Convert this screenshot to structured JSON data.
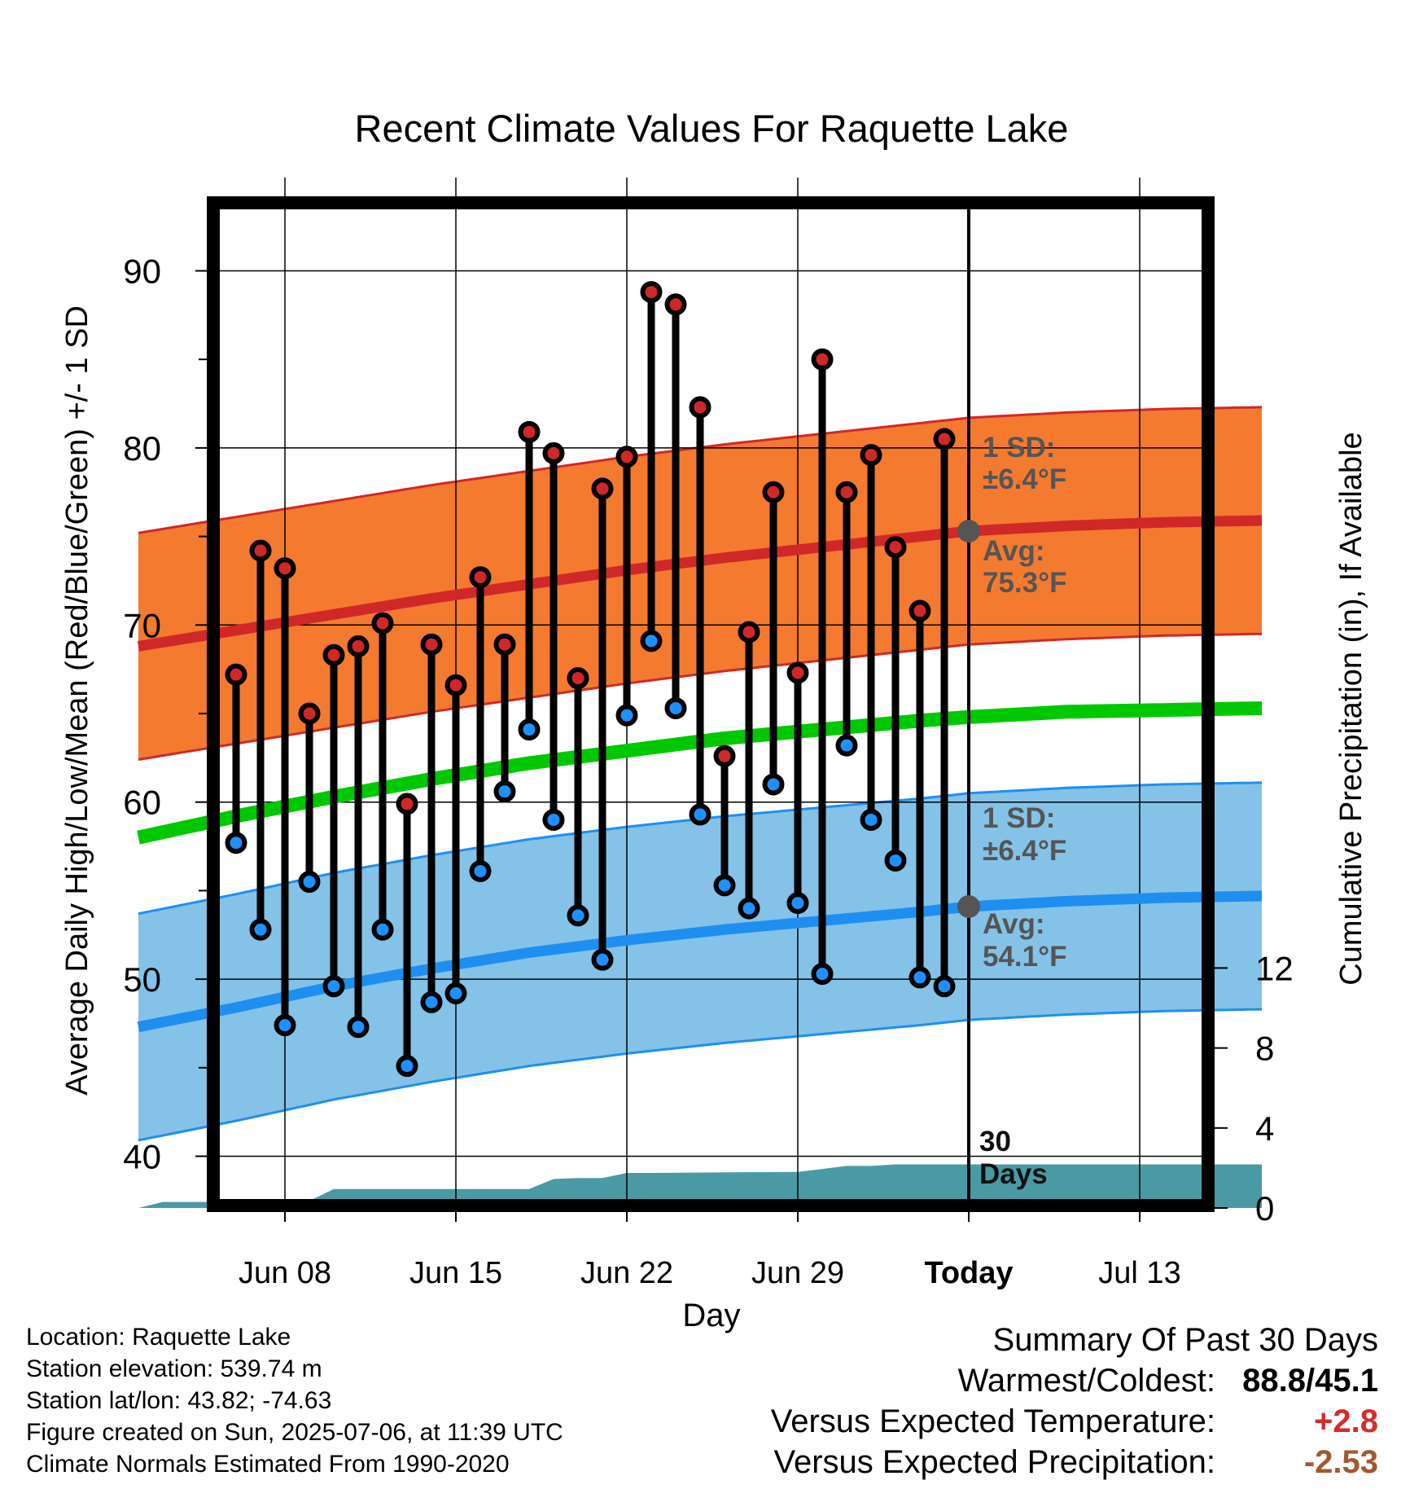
{
  "chart_data": {
    "type": "line",
    "title": "Recent Climate Values For Raquette Lake",
    "xlabel": "Day",
    "ylabel_left": "Average Daily High/Low/Mean (Red/Blue/Green) +/- 1 SD",
    "ylabel_right": "Cumulative Precipitation (in), If Available",
    "x_range_days": [
      -34,
      12
    ],
    "x_unit": "days relative to Today",
    "ylim_left": [
      37.5,
      94
    ],
    "ylim_right": [
      0,
      21.2
    ],
    "y_ticks_left": [
      40,
      50,
      60,
      70,
      80,
      90
    ],
    "y_ticks_right": [
      0,
      4,
      8,
      12
    ],
    "x_ticks": [
      {
        "day": -28,
        "label": "Jun 08"
      },
      {
        "day": -21,
        "label": "Jun 15"
      },
      {
        "day": -14,
        "label": "Jun 22"
      },
      {
        "day": -7,
        "label": "Jun 29"
      },
      {
        "day": 0,
        "label": "Today"
      },
      {
        "day": 7,
        "label": "Jul 13"
      }
    ],
    "grid": true,
    "normals": {
      "days": [
        -34,
        -30,
        -26,
        -22,
        -18,
        -14,
        -10,
        -6,
        -2,
        0,
        4,
        8,
        12
      ],
      "avg_high": [
        68.8,
        69.7,
        70.6,
        71.5,
        72.3,
        73.1,
        73.8,
        74.4,
        75.0,
        75.3,
        75.6,
        75.8,
        75.9
      ],
      "avg_low": [
        47.3,
        48.4,
        49.6,
        50.6,
        51.5,
        52.2,
        52.8,
        53.3,
        53.8,
        54.1,
        54.4,
        54.6,
        54.7
      ],
      "avg_mean": [
        58.0,
        59.2,
        60.3,
        61.3,
        62.2,
        62.9,
        63.6,
        64.1,
        64.6,
        64.8,
        65.1,
        65.2,
        65.3
      ],
      "sd": 6.4
    },
    "daily": [
      {
        "day": -30,
        "high": 67.2,
        "low": 57.7
      },
      {
        "day": -29,
        "high": 74.2,
        "low": 52.8
      },
      {
        "day": -28,
        "high": 73.2,
        "low": 47.4
      },
      {
        "day": -27,
        "high": 65.0,
        "low": 55.5
      },
      {
        "day": -26,
        "high": 68.3,
        "low": 49.6
      },
      {
        "day": -25,
        "high": 68.8,
        "low": 47.3
      },
      {
        "day": -24,
        "high": 70.1,
        "low": 52.8
      },
      {
        "day": -23,
        "high": 59.9,
        "low": 45.1
      },
      {
        "day": -22,
        "high": 68.9,
        "low": 48.7
      },
      {
        "day": -21,
        "high": 66.6,
        "low": 49.2
      },
      {
        "day": -20,
        "high": 72.7,
        "low": 56.1
      },
      {
        "day": -19,
        "high": 68.9,
        "low": 60.6
      },
      {
        "day": -18,
        "high": 80.9,
        "low": 64.1
      },
      {
        "day": -17,
        "high": 79.7,
        "low": 59.0
      },
      {
        "day": -16,
        "high": 67.0,
        "low": 53.6
      },
      {
        "day": -15,
        "high": 77.7,
        "low": 51.1
      },
      {
        "day": -14,
        "high": 79.5,
        "low": 64.9
      },
      {
        "day": -13,
        "high": 88.8,
        "low": 69.1
      },
      {
        "day": -12,
        "high": 88.1,
        "low": 65.3
      },
      {
        "day": -11,
        "high": 82.3,
        "low": 59.3
      },
      {
        "day": -10,
        "high": 62.6,
        "low": 55.3
      },
      {
        "day": -9,
        "high": 69.6,
        "low": 54.0
      },
      {
        "day": -8,
        "high": 77.5,
        "low": 61.0
      },
      {
        "day": -7,
        "high": 67.3,
        "low": 54.3
      },
      {
        "day": -6,
        "high": 85.0,
        "low": 50.3
      },
      {
        "day": -5,
        "high": 77.5,
        "low": 63.2
      },
      {
        "day": -4,
        "high": 79.6,
        "low": 59.0
      },
      {
        "day": -3,
        "high": 74.4,
        "low": 56.7
      },
      {
        "day": -2,
        "high": 70.8,
        "low": 50.1
      },
      {
        "day": -1,
        "high": 80.5,
        "low": 49.6
      }
    ],
    "cumulative_precip": {
      "days": [
        -34,
        -33,
        -32,
        -29,
        -28,
        -27,
        -26,
        -23,
        -20,
        -19,
        -18,
        -17,
        -16,
        -15,
        -14,
        -13,
        -10,
        -7,
        -6,
        -5,
        -4,
        -3,
        -2,
        -1,
        0,
        12
      ],
      "values": [
        0.0,
        0.3,
        0.3,
        0.3,
        0.3,
        0.35,
        0.95,
        0.95,
        0.95,
        0.95,
        0.95,
        1.45,
        1.5,
        1.5,
        1.75,
        1.75,
        1.78,
        1.8,
        1.95,
        2.1,
        2.1,
        2.18,
        2.18,
        2.18,
        2.18,
        2.18
      ]
    },
    "annotations": {
      "high_sd_label": [
        "1 SD:",
        "±6.4°F"
      ],
      "high_avg_label": [
        "Avg:",
        "75.3°F"
      ],
      "low_sd_label": [
        "1 SD:",
        "±6.4°F"
      ],
      "low_avg_label": [
        "Avg:",
        "54.1°F"
      ],
      "precip_label": [
        "30",
        "Days"
      ]
    },
    "colors": {
      "high_band": "#f47a30",
      "high_line": "#d02828",
      "low_band": "#85c2e8",
      "low_line": "#1e8ff0",
      "mean_line": "#00c800",
      "precip": "#4a9aa5",
      "marker_gray": "#555555",
      "annot": "#555555"
    }
  },
  "meta": {
    "location": "Location: Raquette Lake",
    "elevation": "Station elevation: 539.74 m",
    "latlon": "Station lat/lon: 43.82; -74.63",
    "created": "Figure created on Sun, 2025-07-06, at 11:39 UTC",
    "normals": "Climate Normals Estimated From 1990-2020"
  },
  "summary": {
    "title": "Summary Of Past 30 Days",
    "warmest_label": "Warmest/Coldest:",
    "warmest_value": "88.8/45.1",
    "temp_label": "Versus Expected Temperature:",
    "temp_value": "+2.8",
    "precip_label": "Versus Expected Precipitation:",
    "precip_value": "-2.53"
  }
}
